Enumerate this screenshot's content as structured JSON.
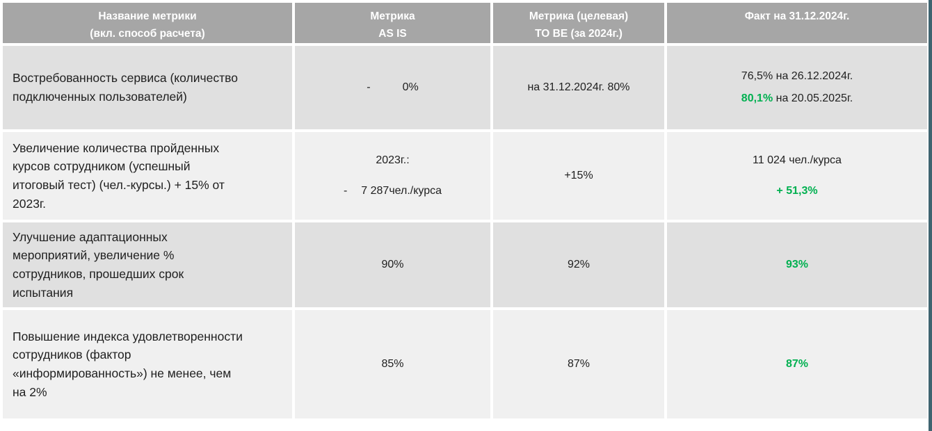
{
  "colors": {
    "header_bg": "#a6a6a6",
    "row_dark": "#e0e0e0",
    "row_light": "#f0f0f0",
    "green": "#00b050",
    "accent_border": "#3f6470"
  },
  "header": {
    "col1": [
      "Название метрики",
      "(вкл. способ расчета)"
    ],
    "col2": [
      "Метрика",
      "AS IS"
    ],
    "col3": [
      "Метрика (целевая)",
      "TO BE (за 2024г.)"
    ],
    "col4": [
      "Факт на 31.12.2024г."
    ]
  },
  "rows": {
    "r1": {
      "metric": "Востребованность сервиса (количество\nподключенных пользователей)",
      "as_is_dash": "-",
      "as_is_value": "0%",
      "to_be": "на 31.12.2024г. 80%",
      "fact_line1": "76,5% на 26.12.2024г.",
      "fact_line2_value": "80,1%",
      "fact_line2_suffix": " на 20.05.2025г."
    },
    "r2": {
      "metric": "Увеличение количества пройденных\nкурсов сотрудником (успешный\nитоговый тест) (чел.-курсы.) + 15% от\n2023г.",
      "as_is_line1": "2023г.:",
      "as_is_dash": "-",
      "as_is_line2": "7 287чел./курса",
      "to_be": "+15%",
      "fact_line1": "11 024 чел./курса",
      "fact_line2_value": "+ 51,3%"
    },
    "r3": {
      "metric": "Улучшение адаптационных\nмероприятий, увеличение %\nсотрудников, прошедших срок\nиспытания",
      "as_is": "90%",
      "to_be": "92%",
      "fact": "93%"
    },
    "r4": {
      "metric": "Повышение индекса удовлетворенности\nсотрудников (фактор\n«информированность») не менее, чем\nна 2%",
      "as_is": "85%",
      "to_be": "87%",
      "fact": "87%"
    }
  }
}
